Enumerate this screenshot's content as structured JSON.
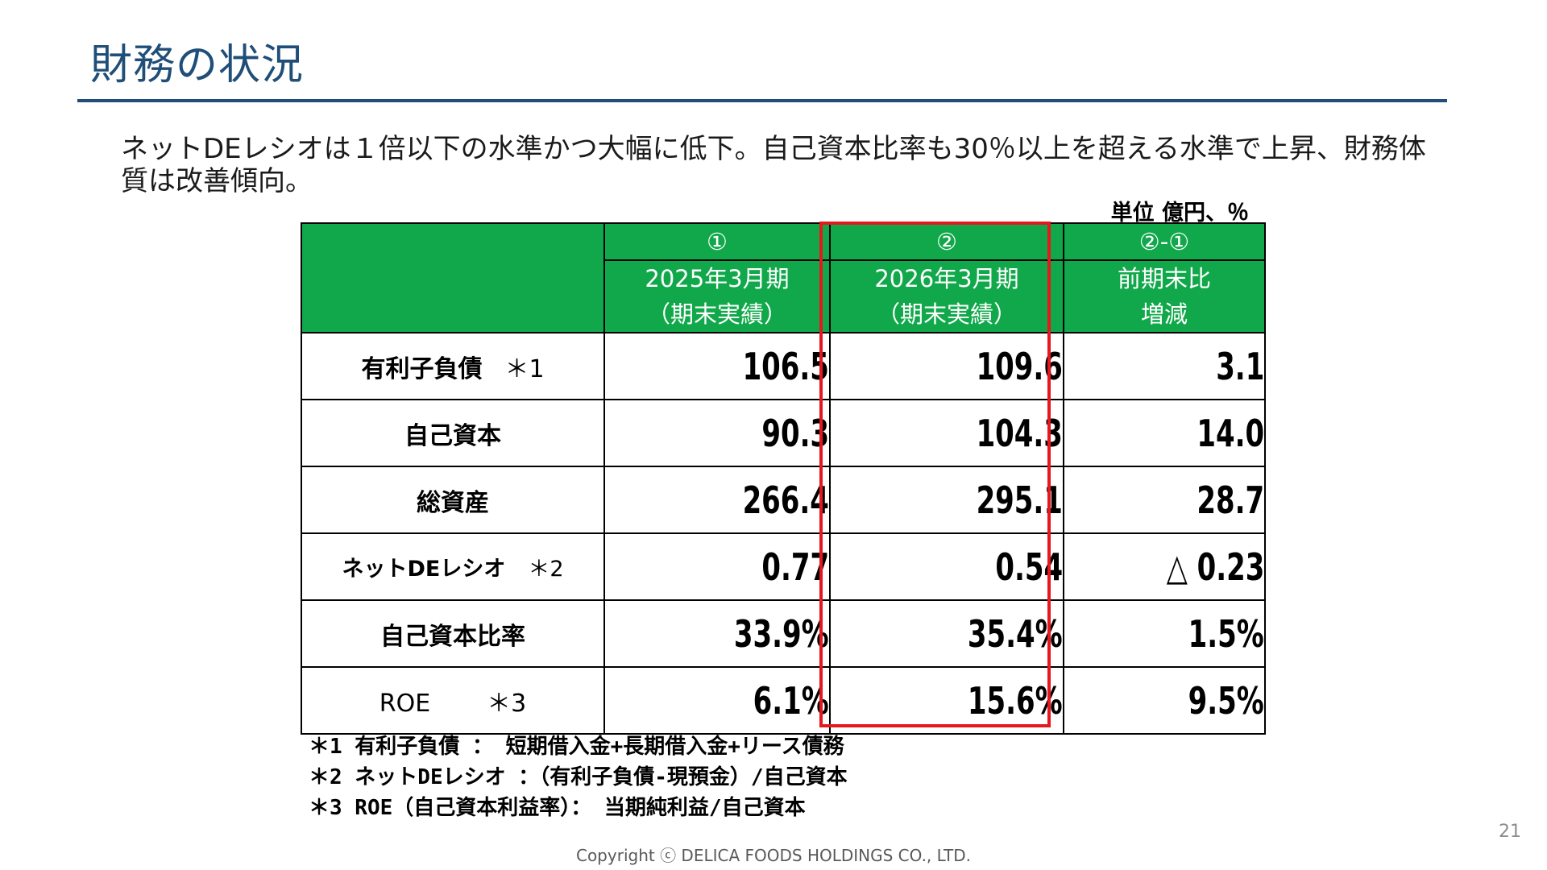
{
  "title": "財務の状況",
  "lead": "ネットDEレシオは１倍以下の水準かつ大幅に低下。自己資本比率も30％以上を超える水準で上昇、財務体質は改善傾向。",
  "unit": "単位 億円、％",
  "table": {
    "headers": [
      {
        "mark": "①",
        "line1": "2025年3月期",
        "line2": "（期末実績）"
      },
      {
        "mark": "②",
        "line1": "2026年3月期",
        "line2": "（期末実績）"
      },
      {
        "mark": "②-①",
        "line1": "前期末比",
        "line2": "増減"
      }
    ],
    "rows": [
      {
        "label": "有利子負債",
        "note": "＊1",
        "v1": "106.5",
        "v2": "109.6",
        "v3": "3.1"
      },
      {
        "label": "自己資本",
        "note": "",
        "v1": "90.3",
        "v2": "104.3",
        "v3": "14.0"
      },
      {
        "label": "総資産",
        "note": "",
        "v1": "266.4",
        "v2": "295.1",
        "v3": "28.7"
      },
      {
        "label": "ネットDEレシオ",
        "note": "＊2",
        "v1": "0.77",
        "v2": "0.54",
        "v3": "△ 0.23"
      },
      {
        "label": "自己資本比率",
        "note": "",
        "v1": "33.9%",
        "v2": "35.4%",
        "v3": "1.5%"
      },
      {
        "label": "ROE",
        "note": "＊3",
        "v1": "6.1%",
        "v2": "15.6%",
        "v3": "9.5%"
      }
    ]
  },
  "notes": [
    "＊1 有利子負債 ： 短期借入金+長期借入金+リース債務",
    "＊2 ネットDEレシオ ：（有利子負債-現預金）/自己資本",
    "＊3 ROE（自己資本利益率）： 当期純利益/自己資本"
  ],
  "page_number": "21",
  "copyright": "Copyright ⓒ DELICA FOODS HOLDINGS CO., LTD.",
  "colors": {
    "title": "#1f4e79",
    "header_bg": "#11a84b",
    "highlight": "#e3191d"
  }
}
